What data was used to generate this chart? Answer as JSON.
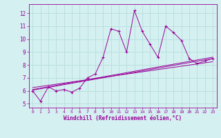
{
  "xlabel": "Windchill (Refroidissement éolien,°C)",
  "bg_color": "#d4f0f0",
  "line_color": "#990099",
  "grid_color": "#b8dede",
  "xlim": [
    -0.5,
    23.5
  ],
  "ylim": [
    4.7,
    12.7
  ],
  "yticks": [
    5,
    6,
    7,
    8,
    9,
    10,
    11,
    12
  ],
  "xticks": [
    0,
    1,
    2,
    3,
    4,
    5,
    6,
    7,
    8,
    9,
    10,
    11,
    12,
    13,
    14,
    15,
    16,
    17,
    18,
    19,
    20,
    21,
    22,
    23
  ],
  "main_series": {
    "x": [
      0,
      1,
      2,
      3,
      4,
      5,
      6,
      7,
      8,
      9,
      10,
      11,
      12,
      13,
      14,
      15,
      16,
      17,
      18,
      19,
      20,
      21,
      22,
      23
    ],
    "y": [
      6.0,
      5.2,
      6.3,
      6.0,
      6.1,
      5.9,
      6.2,
      7.0,
      7.3,
      8.6,
      10.8,
      10.6,
      9.0,
      12.2,
      10.6,
      9.6,
      8.6,
      11.0,
      10.5,
      9.9,
      8.5,
      8.1,
      8.3,
      8.5
    ]
  },
  "trend_lines": [
    {
      "x": [
        0,
        23
      ],
      "y": [
        6.05,
        8.5
      ]
    },
    {
      "x": [
        0,
        23
      ],
      "y": [
        6.25,
        8.25
      ]
    },
    {
      "x": [
        0,
        23
      ],
      "y": [
        6.1,
        8.6
      ]
    }
  ]
}
